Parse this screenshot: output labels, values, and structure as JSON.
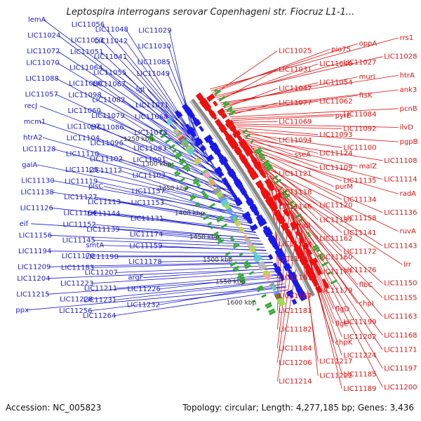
{
  "title": "Leptospira interrogans serovar Copenhageni str. Fiocruz L1-1...",
  "footer": {
    "accession": "Accession: NC_005823",
    "info": "Topology: circular; Length: 4,277,185 bp; Genes: 3,436"
  },
  "colors": {
    "left_labels": "#1a1acc",
    "right_labels": "#dd1111",
    "backbone": "#8a8a8a",
    "rrna": "#ff99cc"
  },
  "scale_labels": [
    "1250 kbp",
    "1300 kbp",
    "1350 kbp",
    "1400 kbp",
    "1450 kbp",
    "1500 kbp",
    "1550 kbp",
    "1600 kbp"
  ],
  "left_labels": [
    "lemA",
    "LIC11056",
    "LIC11048",
    "LIC11029",
    "LIC11024",
    "LIC11053",
    "LIC11042",
    "LIC11030",
    "LIC11072",
    "LIC11051",
    "LIC11041",
    "LIC11085",
    "LIC11070",
    "LIC11064",
    "LIC11055",
    "LIC11049",
    "LIC11088",
    "LIC11080",
    "LIC11067",
    "lgt",
    "LIC11057",
    "LIC11098",
    "LIC11082",
    "LIC11071",
    "recJ",
    "LIC11060",
    "LIC11079",
    "LIC11068",
    "mcm1",
    "LIC11097",
    "LIC11086",
    "LIC11078",
    "htrA2",
    "LIC11104",
    "LIC11096",
    "LIC11083",
    "LIC11128",
    "LIC11110",
    "LIC11102",
    "LIC11091",
    "galA",
    "LIC11125",
    "LIC11112",
    "LIC11103",
    "LIC11130",
    "LIC11119",
    "plsC",
    "LIC11157",
    "LIC11138",
    "LIC11127",
    "LIC11113",
    "LIC11153",
    "LIC11126",
    "LIC11164",
    "LIC11144",
    "LIC11131",
    "eif",
    "LIC11152",
    "LIC11139",
    "LIC11174",
    "LIC11156",
    "LIC11145",
    "smtA",
    "LIC11159",
    "LIC11194",
    "LIC11170",
    "LIC11190",
    "LIC11178",
    "LIC11209",
    "LIC11183",
    "LIC11207",
    "argF",
    "LIC11204",
    "LIC11223",
    "LIC11211",
    "LIC11226",
    "LIC11215",
    "LIC11228",
    "LIC11231",
    "LIC11232",
    "ppx",
    "LIC11256",
    "LIC11264"
  ],
  "right_labels": [
    "rrs1",
    "oppA",
    "pio75",
    "LIC11025",
    "LIC11028",
    "LIC11027",
    "LIC11040",
    "LIC11031",
    "htrA",
    "murI",
    "LIC11054",
    "LIC11047",
    "ank3",
    "ftsK",
    "LIC11062",
    "LIC11077",
    "pcnB",
    "LIC11084",
    "pyrE",
    "LIC11069",
    "ilvD",
    "LIC11092",
    "LIC11093",
    "LIC11094",
    "pgpB",
    "LIC11100",
    "LIC11124",
    "sseA",
    "LIC11108",
    "malZ",
    "LIC11109",
    "LIC11121",
    "LIC11114",
    "LIC11135",
    "purM",
    "LIC11118",
    "radA",
    "LIC11134",
    "LIC11120",
    "LIC11146",
    "LIC11136",
    "LIC11158",
    "LIC11137",
    "ntaB",
    "ruvA",
    "LIC11141",
    "LIC11162",
    "LIC11154",
    "LIC11143",
    "LIC11172",
    "LIC11160",
    "LIC11149",
    "lrr",
    "LIC11176",
    "LIC11177",
    "LIC11161",
    "LIC11150",
    "flbC",
    "LIC11179",
    "LIC11167",
    "LIC11155",
    "chpI",
    "flgD",
    "LIC11181",
    "LIC11163",
    "LIC11199",
    "flgE",
    "LIC11182",
    "LIC11168",
    "LIC11202",
    "chpK",
    "LIC11184",
    "LIC11171",
    "LIC11224",
    "LIC11217",
    "LIC11206",
    "LIC11197",
    "LIC11185",
    "LIC11222",
    "LIC11214",
    "LIC11200",
    "LIC11189"
  ]
}
